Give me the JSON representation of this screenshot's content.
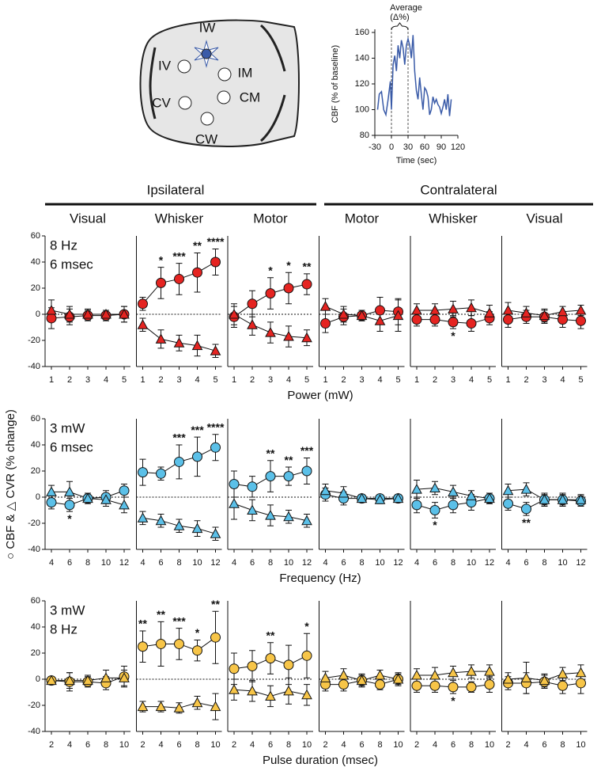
{
  "diagram": {
    "labels": [
      "IW",
      "IV",
      "IM",
      "CV",
      "CM",
      "CW"
    ]
  },
  "figure": {
    "groups": [
      "Ipsilateral",
      "Contralateral"
    ],
    "ylabel": "○ CBF & △ CVR (% change)"
  },
  "chart_data": [
    {
      "type": "line",
      "ylabel": "CBF (% of baseline)",
      "xlabel": "Time (sec)",
      "annotation": [
        "Average",
        "(Δ%)"
      ],
      "window": [
        0,
        30
      ],
      "color": "#3a5ba8",
      "xlim": [
        -30,
        120
      ],
      "xticks": [
        -30,
        0,
        30,
        60,
        90,
        120
      ],
      "ylim": [
        80,
        160
      ],
      "yticks": [
        80,
        100,
        120,
        140,
        160
      ],
      "x": [
        -25,
        -22,
        -18,
        -14,
        -10,
        -6,
        -2,
        0,
        3,
        6,
        9,
        12,
        15,
        18,
        21,
        24,
        27,
        30,
        33,
        36,
        39,
        42,
        45,
        48,
        51,
        54,
        57,
        60,
        63,
        66,
        69,
        72,
        75,
        78,
        81,
        84,
        87,
        90,
        93,
        96,
        99,
        102,
        105,
        108
      ],
      "values": [
        100,
        112,
        114,
        100,
        96,
        108,
        122,
        100,
        135,
        142,
        130,
        150,
        140,
        154,
        148,
        135,
        150,
        155,
        150,
        140,
        158,
        130,
        115,
        108,
        125,
        112,
        100,
        117,
        115,
        110,
        96,
        100,
        110,
        105,
        108,
        104,
        102,
        97,
        102,
        108,
        100,
        112,
        95,
        108
      ]
    },
    {
      "type": "errorbar",
      "title": "Visual",
      "xlabel": "Power (mW)",
      "note": [
        "8 Hz",
        "6 msec"
      ],
      "categories": [
        1,
        2,
        3,
        4,
        5
      ],
      "ylim": [
        -40,
        60
      ],
      "yticks": [
        -40,
        -20,
        0,
        20,
        40,
        60
      ],
      "series": [
        {
          "marker": "circle",
          "color": "#e52421",
          "values": [
            -3,
            -2,
            -1,
            -1,
            0
          ],
          "errors": [
            8,
            6,
            4,
            4,
            6
          ]
        },
        {
          "marker": "triangle",
          "color": "#e52421",
          "values": [
            3,
            0,
            0,
            0,
            0
          ],
          "errors": [
            8,
            6,
            4,
            3,
            6
          ]
        }
      ]
    },
    {
      "type": "errorbar",
      "title": "Whisker",
      "categories": [
        1,
        2,
        3,
        4,
        5
      ],
      "ylim": [
        -40,
        60
      ],
      "series": [
        {
          "marker": "circle",
          "color": "#e52421",
          "values": [
            8,
            24,
            27,
            32,
            40
          ],
          "errors": [
            5,
            12,
            12,
            15,
            10
          ]
        },
        {
          "marker": "triangle",
          "color": "#e52421",
          "values": [
            -8,
            -19,
            -22,
            -24,
            -28
          ],
          "errors": [
            5,
            7,
            6,
            8,
            5
          ]
        }
      ],
      "stars": [
        null,
        "*",
        "***",
        "**",
        "****"
      ]
    },
    {
      "type": "errorbar",
      "title": "Motor",
      "categories": [
        1,
        2,
        3,
        4,
        5
      ],
      "ylim": [
        -40,
        60
      ],
      "series": [
        {
          "marker": "circle",
          "color": "#e52421",
          "values": [
            -2,
            8,
            16,
            20,
            23
          ],
          "errors": [
            8,
            10,
            12,
            12,
            8
          ]
        },
        {
          "marker": "triangle",
          "color": "#e52421",
          "values": [
            0,
            -8,
            -14,
            -17,
            -18
          ],
          "errors": [
            8,
            8,
            8,
            8,
            6
          ]
        }
      ],
      "stars": [
        null,
        null,
        "*",
        "*",
        "**"
      ]
    },
    {
      "type": "errorbar",
      "title": "Motor",
      "categories": [
        1,
        2,
        3,
        4,
        5
      ],
      "ylim": [
        -40,
        60
      ],
      "series": [
        {
          "marker": "circle",
          "color": "#e52421",
          "values": [
            -7,
            -2,
            -1,
            3,
            2
          ],
          "errors": [
            7,
            6,
            4,
            10,
            10
          ]
        },
        {
          "marker": "triangle",
          "color": "#e52421",
          "values": [
            6,
            0,
            -1,
            -5,
            -1
          ],
          "errors": [
            6,
            6,
            4,
            8,
            12
          ]
        }
      ]
    },
    {
      "type": "errorbar",
      "title": "Whisker",
      "categories": [
        1,
        2,
        3,
        4,
        5
      ],
      "ylim": [
        -40,
        60
      ],
      "series": [
        {
          "marker": "circle",
          "color": "#e52421",
          "values": [
            -4,
            -4,
            -6,
            -7,
            -3
          ],
          "errors": [
            5,
            5,
            5,
            6,
            5
          ]
        },
        {
          "marker": "triangle",
          "color": "#e52421",
          "values": [
            3,
            3,
            4,
            5,
            1
          ],
          "errors": [
            5,
            5,
            6,
            6,
            6
          ]
        }
      ],
      "stars": [
        null,
        null,
        "*",
        null,
        null
      ]
    },
    {
      "type": "errorbar",
      "title": "Visual",
      "categories": [
        1,
        2,
        3,
        4,
        5
      ],
      "ylim": [
        -40,
        60
      ],
      "series": [
        {
          "marker": "circle",
          "color": "#e52421",
          "values": [
            -4,
            -2,
            -2,
            -4,
            -5
          ],
          "errors": [
            6,
            5,
            5,
            6,
            6
          ]
        },
        {
          "marker": "triangle",
          "color": "#e52421",
          "values": [
            3,
            1,
            -1,
            2,
            3
          ],
          "errors": [
            6,
            5,
            5,
            4,
            4
          ]
        }
      ]
    },
    {
      "type": "errorbar",
      "xlabel": "Frequency (Hz)",
      "note": [
        "3 mW",
        "6 msec"
      ],
      "categories": [
        4,
        6,
        8,
        10,
        12
      ],
      "ylim": [
        -40,
        60
      ],
      "yticks": [
        -40,
        -20,
        0,
        20,
        40,
        60
      ],
      "series": [
        {
          "marker": "circle",
          "color": "#5bc0e8",
          "values": [
            -4,
            -6,
            -1,
            0,
            5
          ],
          "errors": [
            5,
            5,
            3,
            5,
            5
          ]
        },
        {
          "marker": "triangle",
          "color": "#5bc0e8",
          "values": [
            4,
            4,
            -1,
            -2,
            -6
          ],
          "errors": [
            5,
            8,
            4,
            5,
            6
          ]
        }
      ],
      "stars": [
        null,
        "*",
        null,
        null,
        null
      ]
    },
    {
      "type": "errorbar",
      "categories": [
        4,
        6,
        8,
        10,
        12
      ],
      "ylim": [
        -40,
        60
      ],
      "series": [
        {
          "marker": "circle",
          "color": "#5bc0e8",
          "values": [
            19,
            18,
            27,
            31,
            38
          ],
          "errors": [
            10,
            5,
            13,
            15,
            10
          ]
        },
        {
          "marker": "triangle",
          "color": "#5bc0e8",
          "values": [
            -16,
            -18,
            -22,
            -24,
            -28
          ],
          "errors": [
            5,
            5,
            5,
            6,
            5
          ]
        }
      ],
      "stars": [
        null,
        null,
        "***",
        "***",
        "****"
      ]
    },
    {
      "type": "errorbar",
      "categories": [
        4,
        6,
        8,
        10,
        12
      ],
      "ylim": [
        -40,
        60
      ],
      "series": [
        {
          "marker": "circle",
          "color": "#5bc0e8",
          "values": [
            10,
            8,
            16,
            16,
            20
          ],
          "errors": [
            10,
            8,
            12,
            7,
            10
          ]
        },
        {
          "marker": "triangle",
          "color": "#5bc0e8",
          "values": [
            -5,
            -10,
            -14,
            -15,
            -18
          ],
          "errors": [
            12,
            8,
            8,
            5,
            5
          ]
        }
      ],
      "stars": [
        null,
        null,
        "**",
        "**",
        "***"
      ]
    },
    {
      "type": "errorbar",
      "categories": [
        4,
        6,
        8,
        10,
        12
      ],
      "ylim": [
        -40,
        60
      ],
      "series": [
        {
          "marker": "circle",
          "color": "#5bc0e8",
          "values": [
            2,
            -1,
            -1,
            -1,
            -1
          ],
          "errors": [
            5,
            5,
            3,
            3,
            3
          ]
        },
        {
          "marker": "triangle",
          "color": "#5bc0e8",
          "values": [
            5,
            3,
            -1,
            -2,
            -1
          ],
          "errors": [
            5,
            5,
            3,
            3,
            3
          ]
        }
      ]
    },
    {
      "type": "errorbar",
      "categories": [
        4,
        6,
        8,
        10,
        12
      ],
      "ylim": [
        -40,
        60
      ],
      "series": [
        {
          "marker": "circle",
          "color": "#5bc0e8",
          "values": [
            -6,
            -10,
            -6,
            -4,
            -1
          ],
          "errors": [
            6,
            6,
            6,
            6,
            4
          ]
        },
        {
          "marker": "triangle",
          "color": "#5bc0e8",
          "values": [
            6,
            7,
            4,
            1,
            -1
          ],
          "errors": [
            7,
            5,
            5,
            4,
            4
          ]
        }
      ],
      "stars": [
        null,
        "*",
        null,
        null,
        null
      ]
    },
    {
      "type": "errorbar",
      "categories": [
        4,
        6,
        8,
        10,
        12
      ],
      "ylim": [
        -40,
        60
      ],
      "series": [
        {
          "marker": "circle",
          "color": "#5bc0e8",
          "values": [
            -5,
            -9,
            -2,
            -2,
            -3
          ],
          "errors": [
            5,
            5,
            5,
            5,
            4
          ]
        },
        {
          "marker": "triangle",
          "color": "#5bc0e8",
          "values": [
            5,
            6,
            -2,
            -2,
            -2
          ],
          "errors": [
            5,
            5,
            4,
            4,
            4
          ]
        }
      ],
      "stars": [
        null,
        "**",
        null,
        null,
        null
      ]
    },
    {
      "type": "errorbar",
      "xlabel": "Pulse duration (msec)",
      "note": [
        "3 mW",
        "8 Hz"
      ],
      "categories": [
        2,
        4,
        6,
        8,
        10
      ],
      "ylim": [
        -40,
        60
      ],
      "yticks": [
        -40,
        -20,
        0,
        20,
        40,
        60
      ],
      "series": [
        {
          "marker": "circle",
          "color": "#f7c548",
          "values": [
            -1,
            -2,
            -2,
            -3,
            2
          ],
          "errors": [
            3,
            7,
            4,
            5,
            8
          ]
        },
        {
          "marker": "triangle",
          "color": "#f7c548",
          "values": [
            -1,
            -1,
            -1,
            1,
            1
          ],
          "errors": [
            3,
            6,
            4,
            6,
            6
          ]
        }
      ]
    },
    {
      "type": "errorbar",
      "categories": [
        2,
        4,
        6,
        8,
        10
      ],
      "ylim": [
        -40,
        60
      ],
      "series": [
        {
          "marker": "circle",
          "color": "#f7c548",
          "values": [
            25,
            27,
            27,
            22,
            32
          ],
          "errors": [
            12,
            17,
            12,
            8,
            20
          ]
        },
        {
          "marker": "triangle",
          "color": "#f7c548",
          "values": [
            -21,
            -21,
            -22,
            -18,
            -21
          ],
          "errors": [
            4,
            4,
            4,
            5,
            10
          ]
        }
      ],
      "stars": [
        "**",
        "**",
        "***",
        "*",
        "**"
      ]
    },
    {
      "type": "errorbar",
      "categories": [
        2,
        4,
        6,
        8,
        10
      ],
      "ylim": [
        -40,
        60
      ],
      "series": [
        {
          "marker": "circle",
          "color": "#f7c548",
          "values": [
            8,
            10,
            16,
            11,
            18
          ],
          "errors": [
            12,
            12,
            12,
            15,
            17
          ]
        },
        {
          "marker": "triangle",
          "color": "#f7c548",
          "values": [
            -8,
            -9,
            -13,
            -9,
            -12
          ],
          "errors": [
            8,
            8,
            8,
            10,
            8
          ]
        }
      ],
      "stars": [
        null,
        null,
        "**",
        null,
        "*"
      ]
    },
    {
      "type": "errorbar",
      "categories": [
        2,
        4,
        6,
        8,
        10
      ],
      "ylim": [
        -40,
        60
      ],
      "series": [
        {
          "marker": "circle",
          "color": "#f7c548",
          "values": [
            -4,
            -4,
            -1,
            -4,
            0
          ],
          "errors": [
            5,
            5,
            5,
            4,
            5
          ]
        },
        {
          "marker": "triangle",
          "color": "#f7c548",
          "values": [
            1,
            3,
            -1,
            3,
            0
          ],
          "errors": [
            5,
            5,
            4,
            4,
            4
          ]
        }
      ]
    },
    {
      "type": "errorbar",
      "categories": [
        2,
        4,
        6,
        8,
        10
      ],
      "ylim": [
        -40,
        60
      ],
      "series": [
        {
          "marker": "circle",
          "color": "#f7c548",
          "values": [
            -5,
            -5,
            -6,
            -6,
            -4
          ],
          "errors": [
            5,
            5,
            5,
            4,
            6
          ]
        },
        {
          "marker": "triangle",
          "color": "#f7c548",
          "values": [
            3,
            3,
            5,
            6,
            6
          ],
          "errors": [
            5,
            6,
            5,
            5,
            5
          ]
        }
      ],
      "stars": [
        null,
        null,
        "*",
        null,
        null
      ]
    },
    {
      "type": "errorbar",
      "categories": [
        2,
        4,
        6,
        8,
        10
      ],
      "ylim": [
        -40,
        60
      ],
      "series": [
        {
          "marker": "circle",
          "color": "#f7c548",
          "values": [
            -3,
            -3,
            -2,
            -5,
            -3
          ],
          "errors": [
            5,
            8,
            5,
            6,
            8
          ]
        },
        {
          "marker": "triangle",
          "color": "#f7c548",
          "values": [
            0,
            1,
            -1,
            4,
            5
          ],
          "errors": [
            5,
            12,
            5,
            5,
            6
          ]
        }
      ]
    }
  ]
}
